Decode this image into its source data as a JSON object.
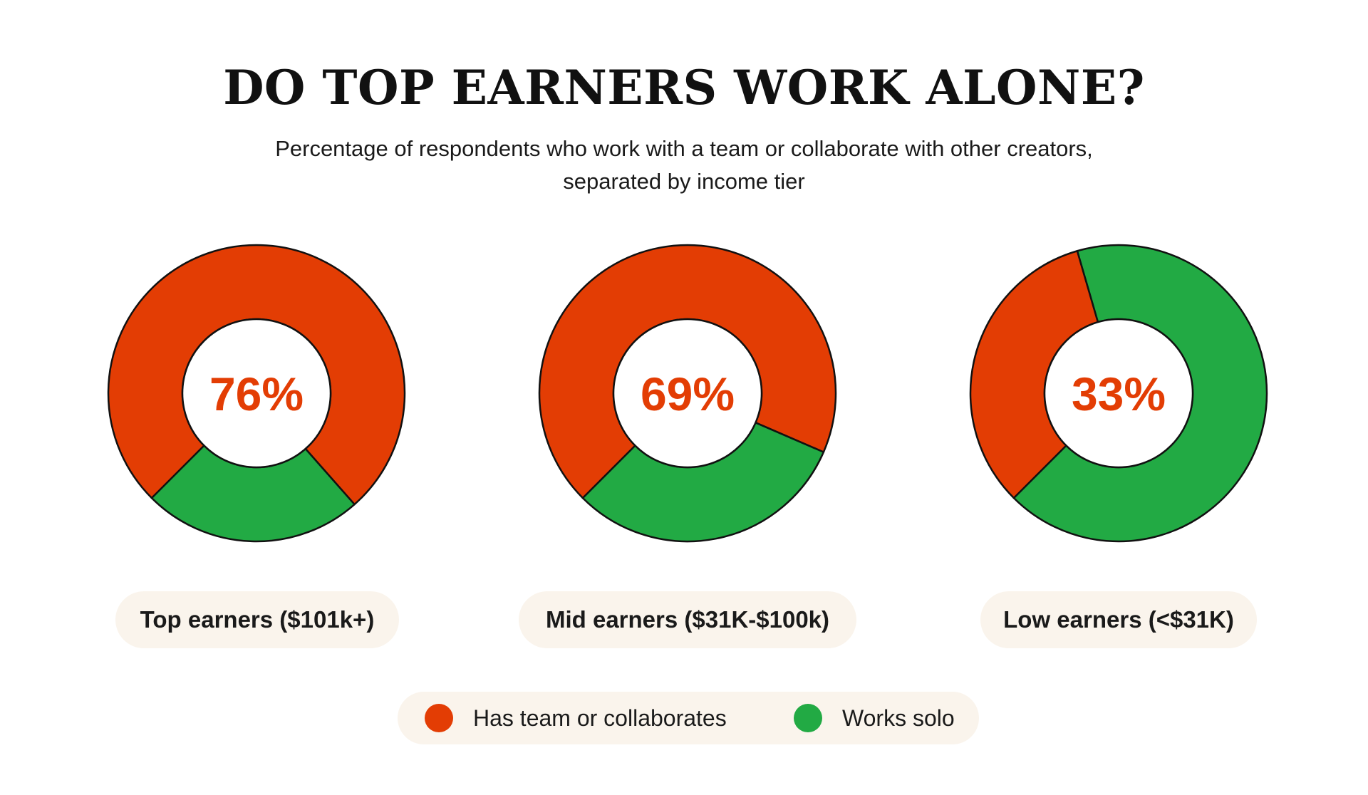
{
  "title": "DO TOP EARNERS WORK ALONE?",
  "subtitle": "Percentage of respondents who work with a team or collaborate with other creators, separated by income tier",
  "colors": {
    "has_team": "#e33d04",
    "works_solo": "#22aa44",
    "pill_bg": "#faf4ec"
  },
  "legend": [
    {
      "label": "Has team or collaborates",
      "color": "#e33d04"
    },
    {
      "label": "Works solo",
      "color": "#22aa44"
    }
  ],
  "chart_data": [
    {
      "type": "pie",
      "category": "Top earners ($101k+)",
      "center_label": "76%",
      "slices": [
        {
          "name": "Has team or collaborates",
          "value": 76
        },
        {
          "name": "Works solo",
          "value": 24
        }
      ]
    },
    {
      "type": "pie",
      "category": "Mid earners ($31K-$100k)",
      "center_label": "69%",
      "slices": [
        {
          "name": "Has team or collaborates",
          "value": 69
        },
        {
          "name": "Works solo",
          "value": 31
        }
      ]
    },
    {
      "type": "pie",
      "category": "Low earners (<$31K)",
      "center_label": "33%",
      "slices": [
        {
          "name": "Has team or collaborates",
          "value": 33
        },
        {
          "name": "Works solo",
          "value": 67
        }
      ]
    }
  ]
}
